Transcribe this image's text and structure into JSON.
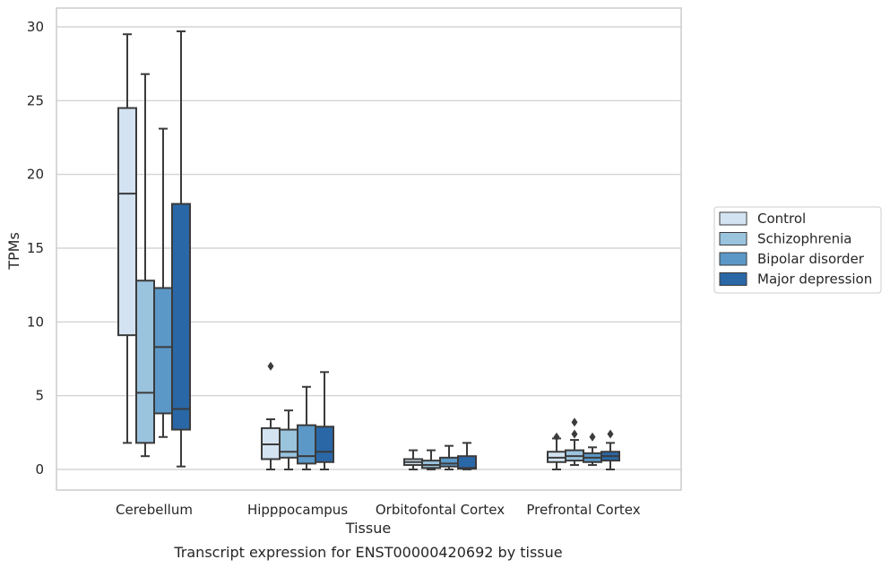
{
  "caption": "Transcript expression for ENST00000420692 by tissue",
  "chart_data": {
    "type": "boxplot",
    "xlabel": "Tissue",
    "ylabel": "TPMs",
    "ylim": [
      -1.4,
      31.2
    ],
    "yticks": [
      0,
      5,
      10,
      15,
      20,
      25,
      30
    ],
    "grid": "horizontal",
    "legend_position": "right",
    "categories": [
      "Cerebellum",
      "Hipppocampus",
      "Orbitofontal Cortex",
      "Prefrontal Cortex"
    ],
    "series": [
      {
        "name": "Control",
        "color": "#d4e3f2",
        "boxes": [
          {
            "whisker_low": 1.8,
            "q1": 9.1,
            "median": 18.7,
            "q3": 24.5,
            "whisker_high": 29.5,
            "outliers": []
          },
          {
            "whisker_low": 0.0,
            "q1": 0.7,
            "median": 1.7,
            "q3": 2.8,
            "whisker_high": 3.4,
            "outliers": [
              7.0
            ]
          },
          {
            "whisker_low": 0.0,
            "q1": 0.3,
            "median": 0.5,
            "q3": 0.7,
            "whisker_high": 1.3,
            "outliers": []
          },
          {
            "whisker_low": 0.0,
            "q1": 0.5,
            "median": 0.8,
            "q3": 1.2,
            "whisker_high": 2.1,
            "outliers": [
              2.2
            ]
          }
        ]
      },
      {
        "name": "Schizophrenia",
        "color": "#9ac3de",
        "boxes": [
          {
            "whisker_low": 0.9,
            "q1": 1.8,
            "median": 5.2,
            "q3": 12.8,
            "whisker_high": 26.8,
            "outliers": []
          },
          {
            "whisker_low": 0.0,
            "q1": 0.8,
            "median": 1.2,
            "q3": 2.7,
            "whisker_high": 4.0,
            "outliers": []
          },
          {
            "whisker_low": 0.0,
            "q1": 0.1,
            "median": 0.3,
            "q3": 0.6,
            "whisker_high": 1.3,
            "outliers": []
          },
          {
            "whisker_low": 0.3,
            "q1": 0.6,
            "median": 0.9,
            "q3": 1.3,
            "whisker_high": 2.0,
            "outliers": [
              2.4,
              3.2
            ]
          }
        ]
      },
      {
        "name": "Bipolar disorder",
        "color": "#5b98c7",
        "boxes": [
          {
            "whisker_low": 2.2,
            "q1": 3.8,
            "median": 8.3,
            "q3": 12.3,
            "whisker_high": 23.1,
            "outliers": []
          },
          {
            "whisker_low": 0.0,
            "q1": 0.4,
            "median": 0.9,
            "q3": 3.0,
            "whisker_high": 5.6,
            "outliers": []
          },
          {
            "whisker_low": 0.0,
            "q1": 0.2,
            "median": 0.4,
            "q3": 0.8,
            "whisker_high": 1.6,
            "outliers": []
          },
          {
            "whisker_low": 0.3,
            "q1": 0.5,
            "median": 0.8,
            "q3": 1.1,
            "whisker_high": 1.5,
            "outliers": [
              2.2
            ]
          }
        ]
      },
      {
        "name": "Major depression",
        "color": "#2a67a7",
        "boxes": [
          {
            "whisker_low": 0.2,
            "q1": 2.7,
            "median": 4.1,
            "q3": 18.0,
            "whisker_high": 29.7,
            "outliers": []
          },
          {
            "whisker_low": 0.0,
            "q1": 0.5,
            "median": 1.2,
            "q3": 2.9,
            "whisker_high": 6.6,
            "outliers": []
          },
          {
            "whisker_low": 0.0,
            "q1": 0.05,
            "median": 0.1,
            "q3": 0.9,
            "whisker_high": 1.8,
            "outliers": []
          },
          {
            "whisker_low": 0.0,
            "q1": 0.6,
            "median": 0.9,
            "q3": 1.2,
            "whisker_high": 1.8,
            "outliers": [
              2.4
            ]
          }
        ]
      }
    ]
  }
}
